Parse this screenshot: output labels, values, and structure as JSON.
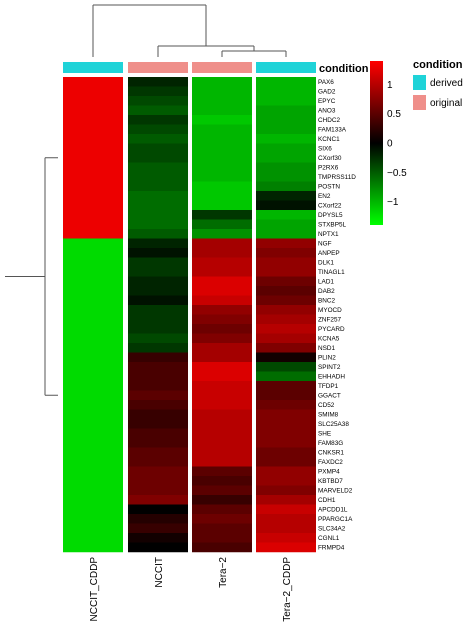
{
  "chart_data": {
    "type": "heatmap",
    "columns": [
      "NCCIT_CDDP",
      "NCCIT",
      "Tera−2",
      "Tera−2_CDDP"
    ],
    "annotation_title": "condition",
    "condition_legend_title": "condition",
    "conditions": [
      "derived",
      "original",
      "original",
      "derived"
    ],
    "condition_levels": [
      {
        "name": "derived",
        "color": "#1fd3d8"
      },
      {
        "name": "original",
        "color": "#ef8f8a"
      }
    ],
    "rows": [
      "PAX6",
      "GAD2",
      "EPYC",
      "ANO3",
      "CHDC2",
      "FAM133A",
      "KCNC1",
      "SIX6",
      "CXorf30",
      "P2RX6",
      "TMPRSS11D",
      "POSTN",
      "EN2",
      "CXorf22",
      "DPYSL5",
      "STXBP5L",
      "NPTX1",
      "NGF",
      "ANPEP",
      "DLK1",
      "TINAGL1",
      "LAD1",
      "DAB2",
      "BNC2",
      "MYOCD",
      "ZNF257",
      "PYCARD",
      "KCNA5",
      "NSD1",
      "PLIN2",
      "SPINT2",
      "EHHADH",
      "TFDP1",
      "GGACT",
      "CD52",
      "SMIM8",
      "SLC25A38",
      "SHE",
      "FAM83G",
      "CNKSR1",
      "FAXDC2",
      "PXMP4",
      "KBTBD7",
      "MARVELD2",
      "CDH1",
      "APCDD1L",
      "PPARGC1A",
      "SLC34A2",
      "CGNL1",
      "FRMPD4"
    ],
    "values": [
      [
        1.3,
        -0.2,
        -1.0,
        -1.0
      ],
      [
        1.3,
        -0.3,
        -1.0,
        -1.0
      ],
      [
        1.3,
        -0.4,
        -1.0,
        -1.0
      ],
      [
        1.3,
        -0.5,
        -1.0,
        -0.9
      ],
      [
        1.3,
        -0.3,
        -1.1,
        -0.9
      ],
      [
        1.3,
        -0.4,
        -1.0,
        -0.9
      ],
      [
        1.3,
        -0.5,
        -1.0,
        -1.0
      ],
      [
        1.3,
        -0.4,
        -1.0,
        -0.9
      ],
      [
        1.3,
        -0.4,
        -1.0,
        -0.9
      ],
      [
        1.3,
        -0.5,
        -1.0,
        -0.8
      ],
      [
        1.3,
        -0.5,
        -1.0,
        -0.8
      ],
      [
        1.3,
        -0.5,
        -1.1,
        -0.7
      ],
      [
        1.3,
        -0.6,
        -1.1,
        -0.2
      ],
      [
        1.3,
        -0.6,
        -1.1,
        -0.1
      ],
      [
        1.3,
        -0.6,
        -0.3,
        -1.0
      ],
      [
        1.3,
        -0.6,
        -0.6,
        -0.9
      ],
      [
        1.3,
        -0.5,
        -0.8,
        -0.9
      ],
      [
        -1.2,
        -0.2,
        0.9,
        0.8
      ],
      [
        -1.2,
        -0.1,
        0.9,
        0.7
      ],
      [
        -1.2,
        -0.3,
        1.0,
        0.8
      ],
      [
        -1.2,
        -0.3,
        1.0,
        0.8
      ],
      [
        -1.2,
        -0.2,
        1.2,
        0.6
      ],
      [
        -1.2,
        -0.2,
        1.2,
        0.5
      ],
      [
        -1.2,
        -0.1,
        1.1,
        0.6
      ],
      [
        -1.2,
        -0.3,
        0.8,
        0.8
      ],
      [
        -1.2,
        -0.3,
        0.7,
        0.9
      ],
      [
        -1.2,
        -0.3,
        0.6,
        1.0
      ],
      [
        -1.2,
        -0.4,
        0.7,
        0.9
      ],
      [
        -1.2,
        -0.3,
        0.9,
        0.7
      ],
      [
        -1.2,
        0.3,
        0.9,
        0.1
      ],
      [
        -1.2,
        0.4,
        1.2,
        -0.4
      ],
      [
        -1.2,
        0.4,
        1.2,
        -0.6
      ],
      [
        -1.2,
        0.4,
        1.1,
        0.5
      ],
      [
        -1.2,
        0.5,
        1.1,
        0.5
      ],
      [
        -1.2,
        0.4,
        1.1,
        0.6
      ],
      [
        -1.2,
        0.3,
        1.0,
        0.7
      ],
      [
        -1.2,
        0.3,
        1.0,
        0.7
      ],
      [
        -1.2,
        0.4,
        1.0,
        0.7
      ],
      [
        -1.2,
        0.4,
        1.0,
        0.7
      ],
      [
        -1.2,
        0.5,
        1.0,
        0.6
      ],
      [
        -1.2,
        0.5,
        1.0,
        0.6
      ],
      [
        -1.2,
        0.6,
        0.5,
        0.8
      ],
      [
        -1.2,
        0.6,
        0.4,
        0.8
      ],
      [
        -1.2,
        0.6,
        0.5,
        0.7
      ],
      [
        -1.2,
        0.7,
        0.3,
        0.9
      ],
      [
        -1.2,
        0.0,
        0.5,
        1.1
      ],
      [
        -1.2,
        0.2,
        0.6,
        1.0
      ],
      [
        -1.2,
        0.3,
        0.5,
        1.0
      ],
      [
        -1.2,
        0.1,
        0.5,
        1.1
      ],
      [
        -1.2,
        0.0,
        0.4,
        1.2
      ]
    ],
    "color_scale": {
      "min": -1.4,
      "max": 1.4,
      "low": "#00ff00",
      "mid": "#000000",
      "high": "#ff0000"
    },
    "colorbar_ticks": [
      1,
      0.5,
      0,
      -0.5,
      -1
    ],
    "colorbar_tick_labels": [
      "1",
      "0.5",
      "0",
      "−0.5",
      "−1"
    ]
  }
}
